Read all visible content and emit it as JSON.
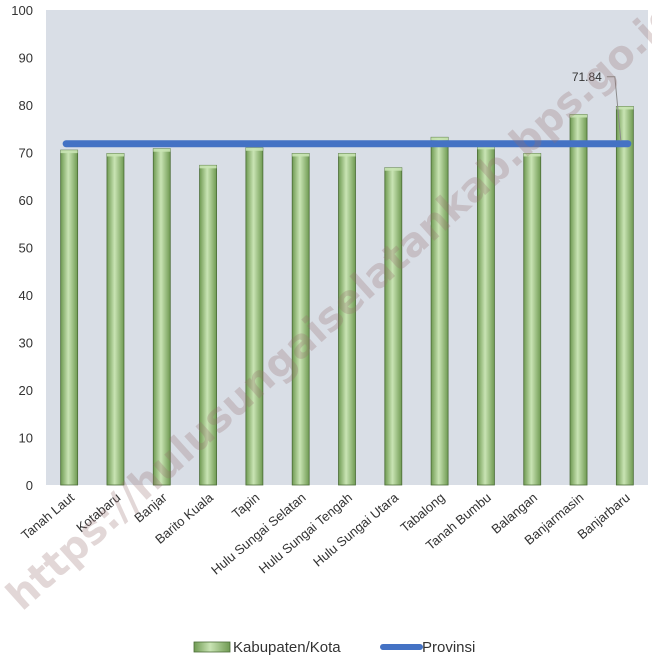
{
  "chart_data": {
    "type": "bar",
    "categories": [
      "Tanah Laut",
      "Kotabaru",
      "Banjar",
      "Barito Kuala",
      "Tapin",
      "Hulu Sungai Selatan",
      "Hulu Sungai Tengah",
      "Hulu Sungai Utara",
      "Tabalong",
      "Tanah Bumbu",
      "Balangan",
      "Banjarmasin",
      "Banjarbaru"
    ],
    "series": [
      {
        "name": "Kabupaten/Kota",
        "type": "bar",
        "values": [
          70.5,
          69.8,
          70.8,
          67.3,
          71.0,
          69.8,
          69.8,
          66.8,
          73.2,
          71.3,
          69.8,
          78.0,
          79.7
        ]
      },
      {
        "name": "Provinsi",
        "type": "line",
        "value": 71.84
      }
    ],
    "ylim": [
      0,
      100
    ],
    "yticks": [
      0,
      10,
      20,
      30,
      40,
      50,
      60,
      70,
      80,
      90,
      100
    ],
    "annotation": "71.84",
    "grid": false,
    "legend_position": "bottom",
    "watermark": "https://hulusungaiselatankab.bps.go.id",
    "colors": {
      "plot_background": "#d9dee6",
      "bar_fill": "#9fc77f",
      "bar_fill_light": "#c9e4b4",
      "bar_fill_dark": "#6f9a52",
      "bar_edge": "#4b6d37",
      "line": "#4472c4"
    }
  }
}
